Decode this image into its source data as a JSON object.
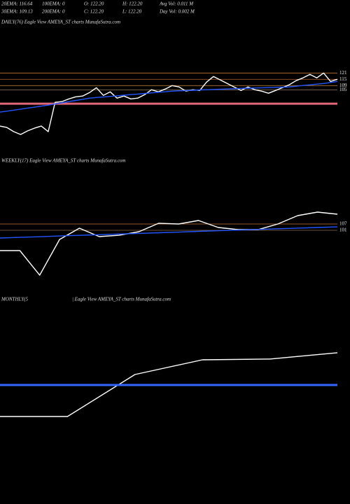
{
  "header": {
    "row1": [
      "20EMA: 116.64",
      "100EMA: 0",
      "O: 122.20",
      "H: 122.20",
      "Avg Vol: 0.011 M"
    ],
    "row2": [
      "30EMA: 109.13",
      "200EMA: 0",
      "C: 122.20",
      "L: 122.20",
      "Day Vol: 0.002  M"
    ]
  },
  "chart_data": [
    {
      "type": "line",
      "title": "DAILY(76) Eagle  View  AMEYA_ST charts MunafaSutra.com",
      "ylim": [
        47,
        164
      ],
      "series": [
        {
          "color": "#ffffff",
          "values": [
            70.3,
            69,
            65,
            62.3,
            65.7,
            68.3,
            70.3,
            65,
            93,
            93.7,
            96.3,
            98.3,
            99,
            102.3,
            107,
            99.7,
            103,
            97,
            99,
            96.3,
            97,
            100.3,
            105,
            103,
            105.7,
            109,
            107.7,
            103.7,
            105,
            104.3,
            112.3,
            117.7,
            114.3,
            111,
            107.7,
            104.3,
            107.7,
            105,
            103.7,
            101.7,
            104.3,
            107,
            109.7,
            113.7,
            116.3,
            119.7,
            116.3,
            121,
            113,
            115
          ]
        },
        {
          "color": "#2255ff",
          "values": [
            83.7,
            84.6,
            85.6,
            86.5,
            87.5,
            88.4,
            89.4,
            90.3,
            91.5,
            92.6,
            93.7,
            94.8,
            95.9,
            97.0,
            97.6,
            98.1,
            98.7,
            99.2,
            99.8,
            100.4,
            100.9,
            101.5,
            102.0,
            102.6,
            103.1,
            103.7,
            104,
            104.2,
            104.5,
            104.8,
            105,
            105.3,
            105.5,
            105.8,
            106,
            106.3,
            106.5,
            106.7,
            106.9,
            107.1,
            107.3,
            107.5,
            107.7,
            108.4,
            109.1,
            109.7,
            110.4,
            111,
            112,
            113
          ]
        }
      ],
      "levels": [
        121,
        115,
        109,
        105
      ],
      "level_colors": [
        "#c8742c",
        "#a0522d",
        "#d08a3c",
        "#9a8060"
      ],
      "support": 91.7,
      "support_color": "#e06878"
    },
    {
      "type": "line",
      "title": "WEEKLY(17) Eagle  View  AMEYA_ST charts MunafaSutra.com",
      "ylim": [
        53.7,
        160.3
      ],
      "series": [
        {
          "color": "#ffffff",
          "values": [
            81.7,
            81.7,
            58.3,
            92.3,
            103,
            95,
            96.3,
            99.7,
            107.7,
            107,
            110.3,
            103.7,
            101.7,
            101.7,
            107,
            115,
            118.3,
            116.3
          ]
        },
        {
          "color": "#2255ff",
          "values": [
            93.7,
            94.3,
            94.9,
            95.6,
            96.2,
            96.8,
            97.5,
            98.1,
            98.7,
            99.3,
            100,
            100.6,
            101.2,
            101.8,
            102.5,
            103.1,
            103.7,
            104.3
          ]
        }
      ],
      "levels": [
        107,
        101
      ],
      "level_colors": [
        "#c87533",
        "#8b6b4a"
      ]
    },
    {
      "type": "line",
      "title": "MONTHLY(5",
      "subtitle": "| Eagle  View  AMEYA_ST charts MunafaSutra.com",
      "ylim": [
        -8,
        165.3
      ],
      "series": [
        {
          "color": "#ffffff",
          "values": [
            62,
            62,
            102,
            116,
            116.7,
            122.7
          ]
        },
        {
          "color": "#3366ff",
          "values": [
            92,
            92,
            92,
            92,
            92,
            92
          ]
        }
      ]
    }
  ]
}
